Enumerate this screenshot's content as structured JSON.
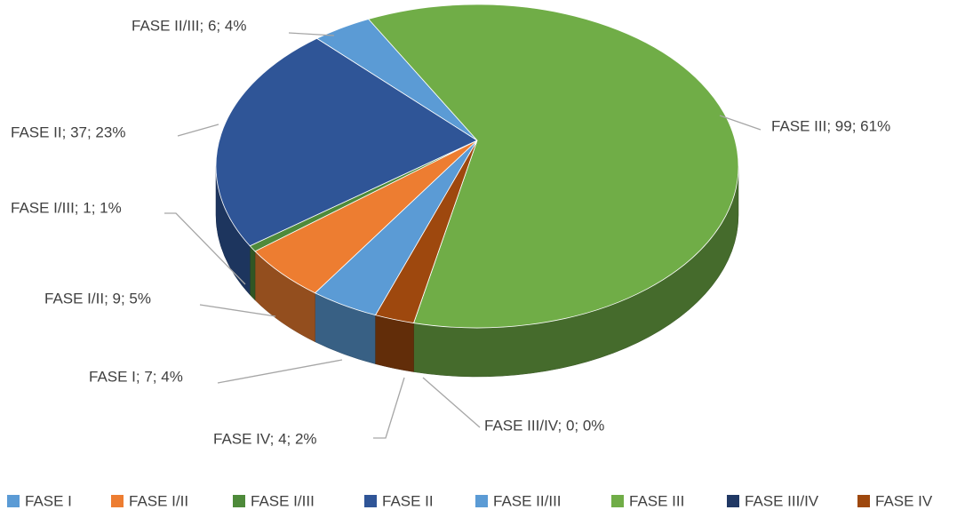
{
  "chart_data": {
    "type": "pie3d",
    "categories": [
      "FASE I",
      "FASE I/II",
      "FASE I/III",
      "FASE II",
      "FASE II/III",
      "FASE III",
      "FASE III/IV",
      "FASE IV"
    ],
    "values": [
      7,
      9,
      1,
      37,
      6,
      99,
      0,
      4
    ],
    "value_labels": [
      "FASE I; 7; 4%",
      "FASE I/II; 9; 5%",
      "FASE I/III; 1; 1%",
      "FASE II; 37; 23%",
      "FASE II/III; 6; 4%",
      "FASE III; 99; 61%",
      "FASE III/IV; 0; 0%",
      "FASE IV; 4; 2%"
    ],
    "colors": [
      "#5b9bd5",
      "#ed7d31",
      "#4e8a3a",
      "#2f5597",
      "#5b9bd5",
      "#70ad47",
      "#203864",
      "#9e480e"
    ],
    "legend": "bottom"
  }
}
